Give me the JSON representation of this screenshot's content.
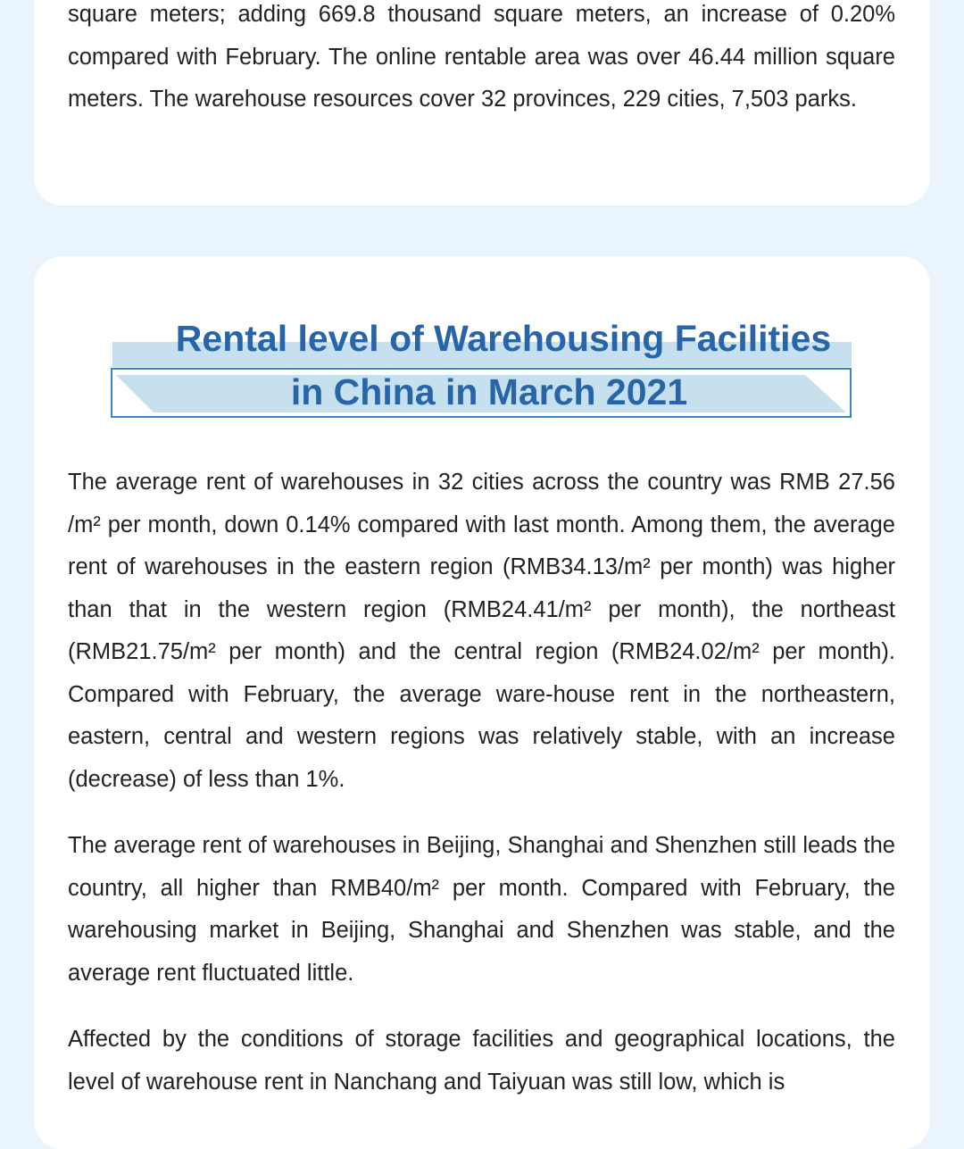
{
  "intro": {
    "paragraph": "square meters; adding 669.8 thousand square meters, an increase of 0.20% compared with February. The online rentable area was over 46.44 million square meters. The warehouse resources cover 32 provinces, 229 cities, 7,503 parks."
  },
  "section": {
    "title_line1": "Rental level of Warehousing Facilities",
    "title_line2": "in China in March  2021",
    "paragraphs": [
      "The average rent of warehouses in 32 cities across the country was RMB 27.56 /m² per month, down 0.14% compared with last month. Among them, the average rent of warehouses in the eastern region (RMB34.13/m² per month) was higher than that in the western region (RMB24.41/m² per month), the northeast (RMB21.75/m² per month) and the central region (RMB24.02/m² per month). Compared with February, the average ware-house rent in the northeastern, eastern, central and western regions was relatively stable, with an increase (decrease) of less than 1%.",
      "The average rent of warehouses in Beijing, Shanghai and Shenzhen still leads the country, all higher than RMB40/m² per month. Compared with February, the warehousing market in Beijing, Shanghai and Shenzhen was stable, and the average rent fluctuated little.",
      "Affected by the conditions of storage facilities and geographical locations, the level of warehouse rent in Nanchang and Taiyuan was still low, which is"
    ]
  },
  "colors": {
    "background": "#eaf4fd",
    "title": "#2865a8",
    "band": "#c7e0ee",
    "border": "#3b84c4"
  }
}
